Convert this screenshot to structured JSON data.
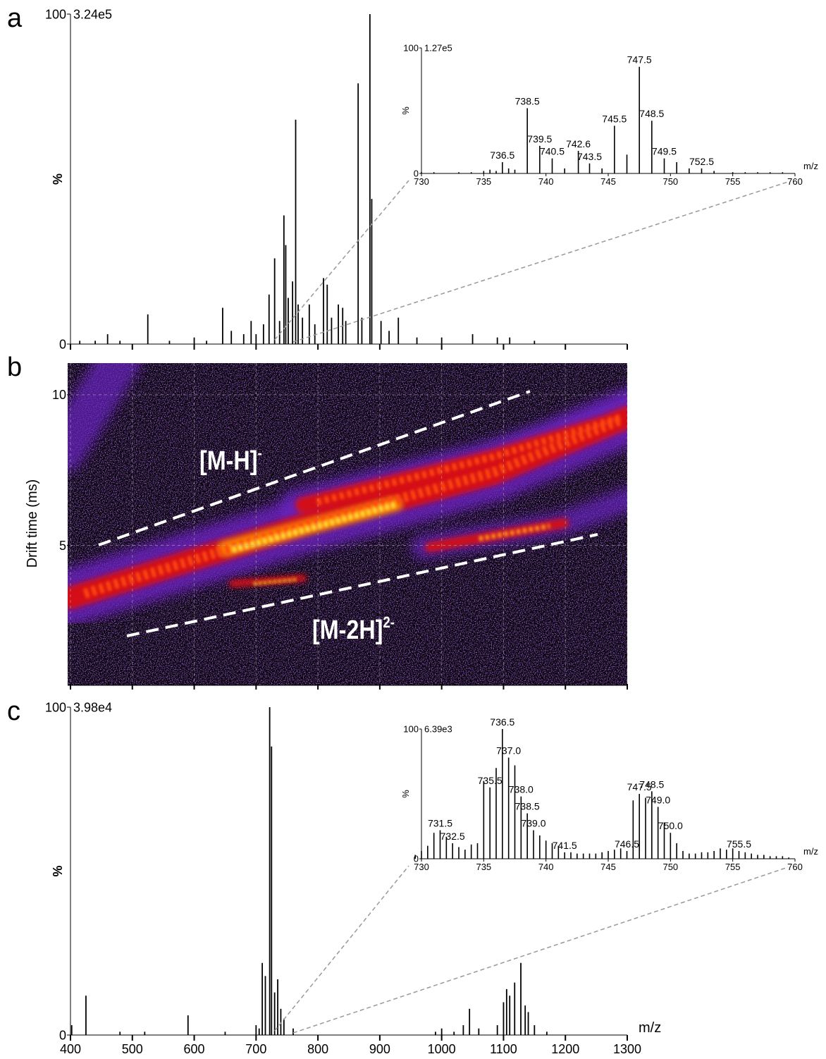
{
  "chart_data": [
    {
      "type": "stick",
      "panel": "a",
      "scale_label": "3.24e5",
      "ylabel": "%",
      "color": "#000000",
      "xlim": [
        400,
        1300
      ],
      "xticks": [
        400,
        500,
        600,
        700,
        800,
        900,
        1000,
        1100,
        1200,
        1300
      ],
      "xtick_labels": false,
      "ylim": [
        0,
        100
      ],
      "yticks": [
        0,
        100
      ],
      "x": [
        415,
        440,
        460,
        480,
        525,
        560,
        600,
        620,
        646,
        660,
        680,
        692,
        700,
        712,
        721,
        730,
        738,
        745,
        748,
        752,
        759,
        764,
        768,
        775,
        786,
        795,
        809,
        815,
        822,
        833,
        840,
        845,
        865,
        871,
        884,
        887,
        902,
        915,
        930,
        960,
        1000,
        1050,
        1090,
        1110,
        1150
      ],
      "values": [
        1,
        1,
        3,
        1,
        9,
        1,
        2,
        1,
        11,
        4,
        3,
        7,
        3,
        6,
        15,
        26,
        7,
        39,
        30,
        14,
        19,
        68,
        12,
        8,
        12,
        6,
        20,
        18,
        8,
        12,
        11,
        7,
        79,
        8,
        100,
        44,
        7,
        4,
        8,
        2,
        2,
        3,
        2,
        2,
        1
      ],
      "inset": {
        "type": "stick",
        "scale_label": "1.27e5",
        "ylabel": "%",
        "xlabel": "m/z",
        "color": "#000000",
        "xlim": [
          730,
          760
        ],
        "xticks": [
          730,
          735,
          740,
          745,
          750,
          755,
          760
        ],
        "xtick_labels": true,
        "ylim": [
          0,
          100
        ],
        "yticks": [
          0,
          100
        ],
        "x": [
          730,
          731,
          733,
          734,
          735,
          735.5,
          736,
          736.5,
          737,
          737.5,
          738.5,
          739.5,
          740.5,
          741.5,
          742.6,
          743.5,
          744.5,
          745.5,
          746.5,
          747.5,
          748.5,
          749.5,
          750.5,
          751.5,
          752.5,
          753.5,
          755,
          756,
          757,
          758,
          759
        ],
        "values": [
          1,
          1,
          1,
          1,
          2,
          3,
          2,
          9,
          4,
          3,
          52,
          22,
          12,
          4,
          18,
          8,
          4,
          38,
          15,
          85,
          42,
          12,
          9,
          4,
          4,
          2,
          1,
          1,
          1,
          1,
          1
        ],
        "peak_labels": [
          null,
          null,
          null,
          null,
          null,
          null,
          null,
          "736.5",
          null,
          null,
          "738.5",
          "739.5",
          "740.5",
          null,
          "742.6",
          "743.5",
          null,
          "745.5",
          null,
          "747.5",
          "748.5",
          "749.5",
          null,
          null,
          "752.5",
          null,
          null,
          null,
          null,
          null,
          null
        ]
      }
    },
    {
      "type": "heatmap",
      "panel": "b",
      "ylabel": "Drift time (ms)",
      "xlim": [
        400,
        1300
      ],
      "xticks": [
        400,
        500,
        600,
        700,
        800,
        900,
        1000,
        1100,
        1200,
        1300
      ],
      "xtick_labels": false,
      "ylim": [
        0.4,
        11.05
      ],
      "yticks": [
        5,
        10
      ],
      "grid": true,
      "annotations": [
        {
          "text": "[M-H]",
          "superscript": "-"
        },
        {
          "text": "[M-2H]",
          "superscript": "2-"
        }
      ]
    },
    {
      "type": "stick",
      "panel": "c",
      "scale_label": "3.98e4",
      "ylabel": "%",
      "xlabel": "m/z",
      "color": "#000000",
      "xlim": [
        400,
        1300
      ],
      "xticks": [
        400,
        500,
        600,
        700,
        800,
        900,
        1000,
        1100,
        1200,
        1300
      ],
      "xtick_labels": true,
      "ylim": [
        0,
        100
      ],
      "yticks": [
        0,
        100
      ],
      "x": [
        402,
        425,
        480,
        520,
        590,
        650,
        700,
        705,
        710,
        715,
        722,
        725,
        730,
        735,
        740,
        745,
        760,
        990,
        1000,
        1020,
        1035,
        1045,
        1060,
        1090,
        1100,
        1105,
        1110,
        1118,
        1128,
        1135,
        1140,
        1150,
        1170
      ],
      "values": [
        3,
        12,
        1,
        1,
        6,
        1,
        3,
        2,
        22,
        18,
        100,
        88,
        13,
        17,
        8,
        5,
        2,
        1,
        2,
        1,
        3,
        8,
        2,
        3,
        10,
        14,
        12,
        16,
        22,
        9,
        7,
        3,
        1
      ],
      "inset": {
        "type": "stick",
        "scale_label": "6.39e3",
        "ylabel": "%",
        "xlabel": "m/z",
        "color": "#000000",
        "xlim": [
          730,
          760
        ],
        "xticks": [
          730,
          735,
          740,
          745,
          750,
          755,
          760
        ],
        "xtick_labels": true,
        "ylim": [
          0,
          100
        ],
        "yticks": [
          0,
          100
        ],
        "x": [
          729.5,
          730,
          730.5,
          731,
          731.5,
          732,
          732.5,
          733,
          733.5,
          734,
          734.5,
          735,
          735.5,
          736,
          736.5,
          737,
          737.5,
          738,
          738.5,
          739,
          739.5,
          740,
          740.5,
          741,
          741.5,
          742,
          742.5,
          743,
          743.5,
          744,
          744.5,
          745,
          745.5,
          746,
          746.5,
          747,
          747.5,
          748,
          748.5,
          749,
          749.5,
          750,
          750.5,
          751,
          751.5,
          752,
          752.5,
          753,
          753.5,
          754,
          754.5,
          755,
          755.5,
          756,
          756.5,
          757,
          757.5,
          758,
          758.5,
          759,
          759.5
        ],
        "values": [
          3,
          6,
          10,
          20,
          22,
          17,
          12,
          9,
          7,
          11,
          12,
          60,
          55,
          70,
          100,
          78,
          72,
          48,
          35,
          22,
          18,
          14,
          12,
          10,
          5,
          5,
          4,
          4,
          4,
          4,
          5,
          6,
          7,
          8,
          6,
          45,
          50,
          47,
          52,
          40,
          28,
          20,
          12,
          6,
          4,
          4,
          5,
          5,
          6,
          8,
          7,
          8,
          6,
          5,
          4,
          3,
          3,
          2,
          2,
          2,
          1
        ],
        "peak_labels": [
          null,
          null,
          null,
          null,
          "731.5",
          null,
          "732.5",
          null,
          null,
          null,
          null,
          null,
          "735.5",
          null,
          "736.5",
          "737.0",
          null,
          "738.0",
          "738.5",
          "739.0",
          null,
          null,
          null,
          null,
          "741.5",
          null,
          null,
          null,
          null,
          null,
          null,
          null,
          null,
          null,
          "746.5",
          null,
          "747.5",
          null,
          "748.5",
          "749.0",
          null,
          "750.0",
          null,
          null,
          null,
          null,
          null,
          null,
          null,
          null,
          null,
          null,
          "755.5",
          null,
          null,
          null,
          null,
          null,
          null,
          null,
          null
        ]
      }
    }
  ]
}
